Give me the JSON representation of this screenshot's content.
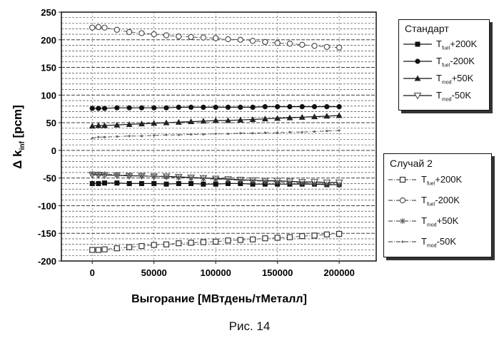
{
  "caption": "Рис. 14",
  "chart_data": {
    "type": "scatter",
    "title": "",
    "xlabel": "Выгорание [МВтдень/тМеталл]",
    "ylabel": "Δ k_inf [pcm]",
    "xlim": [
      -25000,
      230000
    ],
    "ylim": [
      -200,
      250
    ],
    "x_ticks": [
      0,
      50000,
      100000,
      150000,
      200000
    ],
    "x_tick_labels": [
      "0",
      "50000",
      "100000",
      "150000",
      "200000"
    ],
    "y_ticks": [
      -200,
      -150,
      -100,
      -50,
      0,
      50,
      100,
      150,
      200,
      250
    ],
    "y_tick_labels": [
      "-200",
      "-150",
      "-100",
      "-50",
      "0",
      "50",
      "100",
      "150",
      "200",
      "250"
    ],
    "grid": true,
    "x": [
      0,
      5000,
      10000,
      20000,
      30000,
      40000,
      50000,
      60000,
      70000,
      80000,
      90000,
      100000,
      110000,
      120000,
      130000,
      140000,
      150000,
      160000,
      170000,
      180000,
      190000,
      200000
    ],
    "legend_groups": [
      {
        "title": "Стандарт",
        "placement": "top-right"
      },
      {
        "title": "Случай 2",
        "placement": "right"
      }
    ],
    "series": [
      {
        "group": "Стандарт",
        "name": "T_fuel+200K",
        "label_main": "T",
        "label_sub": "fuel",
        "label_tail": "+200K",
        "marker": "square-filled",
        "line": "solid",
        "values": [
          -60,
          -60,
          -59,
          -59,
          -60,
          -60,
          -60,
          -61,
          -60,
          -60,
          -61,
          -61,
          -60,
          -60,
          -61,
          -61,
          -61,
          -61,
          -61,
          -61,
          -62,
          -62
        ]
      },
      {
        "group": "Стандарт",
        "name": "T_fuel-200K",
        "label_main": "T",
        "label_sub": "fuel",
        "label_tail": "-200K",
        "marker": "circle-filled",
        "line": "solid",
        "values": [
          76,
          76,
          76,
          77,
          77,
          77,
          77,
          77,
          78,
          78,
          78,
          78,
          78,
          78,
          78,
          79,
          79,
          79,
          79,
          79,
          79,
          79
        ]
      },
      {
        "group": "Стандарт",
        "name": "T_mod+50K",
        "label_main": "T",
        "label_sub": "mod",
        "label_tail": "+50K",
        "marker": "triangle-filled",
        "line": "solid",
        "values": [
          44,
          45,
          45,
          46,
          47,
          48,
          49,
          50,
          51,
          52,
          53,
          54,
          54,
          55,
          56,
          57,
          58,
          59,
          60,
          61,
          62,
          63
        ]
      },
      {
        "group": "Стандарт",
        "name": "T_mod-50K",
        "label_main": "T",
        "label_sub": "mod",
        "label_tail": "-50K",
        "marker": "triangle-down-open",
        "line": "solid",
        "values": [
          -44,
          -44,
          -45,
          -45,
          -46,
          -46,
          -47,
          -47,
          -48,
          -49,
          -50,
          -51,
          -52,
          -53,
          -54,
          -55,
          -55,
          -56,
          -57,
          -57,
          -58,
          -58
        ]
      },
      {
        "group": "Случай 2",
        "name": "T_fuel+200K",
        "label_main": "T",
        "label_sub": "fuel",
        "label_tail": "+200K",
        "marker": "square-open",
        "line": "dashdot",
        "values": [
          -180,
          -180,
          -179,
          -177,
          -175,
          -173,
          -171,
          -170,
          -168,
          -167,
          -166,
          -165,
          -163,
          -162,
          -161,
          -159,
          -158,
          -157,
          -155,
          -154,
          -152,
          -151
        ]
      },
      {
        "group": "Случай 2",
        "name": "T_fuel-200K",
        "label_main": "T",
        "label_sub": "fuel",
        "label_tail": "-200K",
        "marker": "circle-open",
        "line": "dashdot",
        "values": [
          222,
          223,
          222,
          218,
          214,
          212,
          210,
          208,
          206,
          205,
          204,
          203,
          201,
          200,
          198,
          196,
          194,
          193,
          191,
          189,
          187,
          186
        ]
      },
      {
        "group": "Случай 2",
        "name": "T_mod+50K",
        "label_main": "T",
        "label_sub": "mod",
        "label_tail": "+50K",
        "marker": "star",
        "line": "dashdot",
        "values": [
          -42,
          -43,
          -43,
          -44,
          -45,
          -46,
          -47,
          -48,
          -49,
          -50,
          -51,
          -52,
          -53,
          -54,
          -55,
          -56,
          -57,
          -58,
          -59,
          -60,
          -61,
          -62
        ]
      },
      {
        "group": "Случай 2",
        "name": "T_mod-50K",
        "label_main": "T",
        "label_sub": "mod",
        "label_tail": "-50K",
        "marker": "dot-small",
        "line": "dashdot",
        "values": [
          22,
          24,
          24,
          25,
          26,
          26,
          27,
          28,
          28,
          29,
          29,
          30,
          30,
          31,
          31,
          32,
          32,
          33,
          33,
          34,
          35,
          36
        ]
      }
    ]
  }
}
